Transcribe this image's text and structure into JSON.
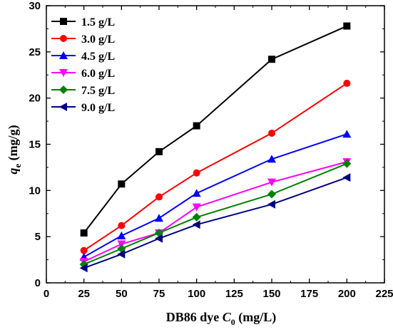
{
  "chart_data": {
    "type": "line",
    "x": [
      25,
      50,
      75,
      100,
      150,
      200
    ],
    "xlabel": "DB86 dye C0 (mg/L)",
    "ylabel": "qe (mg/g)",
    "xlim": [
      0,
      225
    ],
    "ylim": [
      0,
      30
    ],
    "xticks": [
      0,
      25,
      50,
      75,
      100,
      125,
      150,
      175,
      200,
      225
    ],
    "yticks": [
      0,
      5,
      10,
      15,
      20,
      25,
      30
    ],
    "grid": false,
    "legend_position": "top-left",
    "series": [
      {
        "name": "1.5 g/L",
        "color": "#000000",
        "marker": "square",
        "values": [
          5.4,
          10.7,
          14.2,
          17.0,
          24.2,
          27.8
        ]
      },
      {
        "name": "3.0 g/L",
        "color": "#ff0000",
        "marker": "circle",
        "values": [
          3.5,
          6.2,
          9.3,
          11.9,
          16.2,
          21.6
        ]
      },
      {
        "name": "4.5 g/L",
        "color": "#0000ff",
        "marker": "triangle-up",
        "values": [
          2.8,
          5.1,
          7.0,
          9.7,
          13.4,
          16.1
        ]
      },
      {
        "name": "6.0 g/L",
        "color": "#ff00ff",
        "marker": "triangle-down",
        "values": [
          2.3,
          4.2,
          5.4,
          8.2,
          10.9,
          13.1
        ]
      },
      {
        "name": "7.5 g/L",
        "color": "#008000",
        "marker": "diamond",
        "values": [
          2.0,
          3.7,
          5.4,
          7.1,
          9.6,
          12.9
        ]
      },
      {
        "name": "9.0 g/L",
        "color": "#000080",
        "marker": "triangle-left",
        "values": [
          1.6,
          3.1,
          4.8,
          6.3,
          8.5,
          11.4
        ]
      }
    ]
  },
  "axis_titles": {
    "x_prefix": "DB86 dye ",
    "x_var": "C",
    "x_sub": "0",
    "x_suffix": " (mg/L)",
    "y_var": "q",
    "y_sub": "e",
    "y_suffix": " (mg/g)"
  }
}
